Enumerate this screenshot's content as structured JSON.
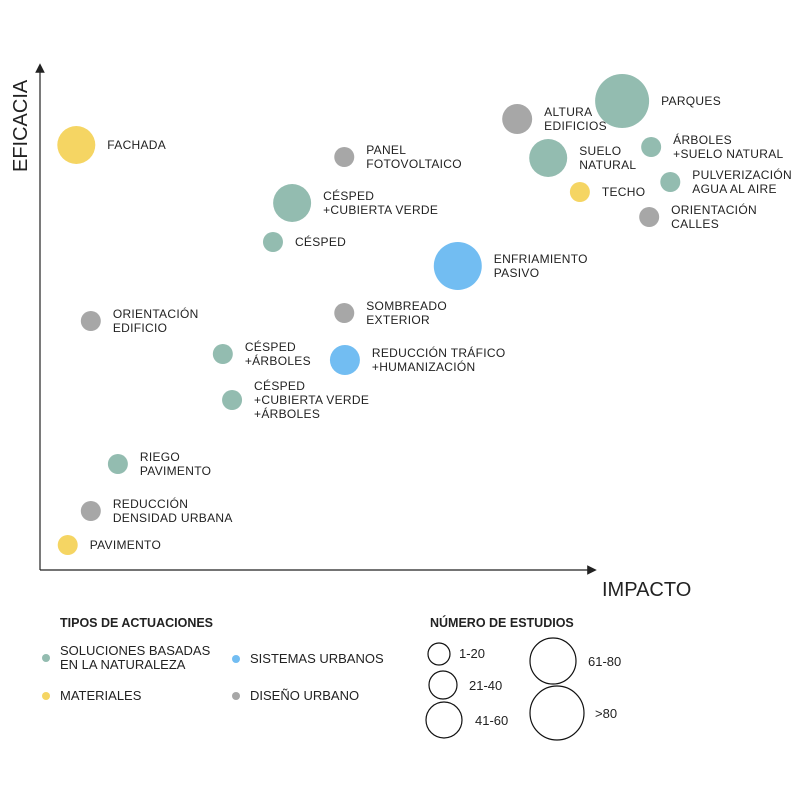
{
  "chart_data": {
    "type": "scatter",
    "title": "",
    "xlabel": "IMPACTO",
    "ylabel": "EFICACIA",
    "xlim": [
      0,
      100
    ],
    "ylim": [
      0,
      100
    ],
    "grid": false,
    "colors": {
      "nature": "#93bcb0",
      "materials": "#f5d563",
      "systems": "#72bdf2",
      "design": "#a7a7a7"
    },
    "categories_legend": {
      "title": "TIPOS DE ACTUACIONES",
      "items": [
        {
          "key": "nature",
          "lines": [
            "SOLUCIONES BASADAS",
            "EN LA NATURALEZA"
          ]
        },
        {
          "key": "systems",
          "lines": [
            "SISTEMAS URBANOS"
          ]
        },
        {
          "key": "materials",
          "lines": [
            "MATERIALES"
          ]
        },
        {
          "key": "design",
          "lines": [
            "DISEÑO URBANO"
          ]
        }
      ]
    },
    "size_legend": {
      "title": "NÚMERO DE ESTUDIOS",
      "items": [
        "1-20",
        "21-40",
        "41-60",
        "61-80",
        ">80"
      ]
    },
    "points": [
      {
        "lines": [
          "FACHADA"
        ],
        "x": 5.5,
        "y": 85,
        "cat": "materials",
        "studies": "41-60"
      },
      {
        "lines": [
          "PANEL",
          "FOTOVOLTAICO"
        ],
        "x": 46.1,
        "y": 82.6,
        "cat": "design",
        "studies": "1-20"
      },
      {
        "lines": [
          "CÉSPED",
          "+CUBIERTA VERDE"
        ],
        "x": 38.2,
        "y": 73.4,
        "cat": "nature",
        "studies": "41-60"
      },
      {
        "lines": [
          "CÉSPED"
        ],
        "x": 35.3,
        "y": 65.6,
        "cat": "nature",
        "studies": "1-20"
      },
      {
        "lines": [
          "ENFRIAMIENTO",
          "PASIVO"
        ],
        "x": 63.3,
        "y": 60.8,
        "cat": "systems",
        "studies": "61-80"
      },
      {
        "lines": [
          "ALTURA",
          "EDIFICIOS"
        ],
        "x": 72.3,
        "y": 90.2,
        "cat": "design",
        "studies": "21-40"
      },
      {
        "lines": [
          "PARQUES"
        ],
        "x": 88.2,
        "y": 93.8,
        "cat": "nature",
        "studies": ">80"
      },
      {
        "lines": [
          "SUELO",
          "NATURAL"
        ],
        "x": 77.0,
        "y": 82.4,
        "cat": "nature",
        "studies": "41-60"
      },
      {
        "lines": [
          "ÁRBOLES",
          "+SUELO NATURAL"
        ],
        "x": 92.6,
        "y": 84.6,
        "cat": "nature",
        "studies": "1-20"
      },
      {
        "lines": [
          "PULVERIZACIÓN",
          "AGUA AL AIRE"
        ],
        "x": 95.5,
        "y": 77.6,
        "cat": "nature",
        "studies": "1-20"
      },
      {
        "lines": [
          "TECHO"
        ],
        "x": 81.8,
        "y": 75.6,
        "cat": "materials",
        "studies": "1-20"
      },
      {
        "lines": [
          "ORIENTACIÓN",
          "CALLES"
        ],
        "x": 92.3,
        "y": 70.6,
        "cat": "design",
        "studies": "1-20"
      },
      {
        "lines": [
          "ORIENTACIÓN",
          "EDIFICIO"
        ],
        "x": 7.7,
        "y": 49.8,
        "cat": "design",
        "studies": "1-20"
      },
      {
        "lines": [
          "SOMBREADO",
          "EXTERIOR"
        ],
        "x": 46.1,
        "y": 51.4,
        "cat": "design",
        "studies": "1-20"
      },
      {
        "lines": [
          "CÉSPED",
          "+ÁRBOLES"
        ],
        "x": 27.7,
        "y": 43.2,
        "cat": "nature",
        "studies": "1-20"
      },
      {
        "lines": [
          "REDUCCIÓN TRÁFICO",
          "+HUMANIZACIÓN"
        ],
        "x": 46.2,
        "y": 42.0,
        "cat": "systems",
        "studies": "21-40"
      },
      {
        "lines": [
          "CÉSPED",
          "+CUBIERTA VERDE",
          "+ÁRBOLES"
        ],
        "x": 29.1,
        "y": 34.0,
        "cat": "nature",
        "studies": "1-20"
      },
      {
        "lines": [
          "RIEGO",
          "PAVIMENTO"
        ],
        "x": 11.8,
        "y": 21.2,
        "cat": "nature",
        "studies": "1-20"
      },
      {
        "lines": [
          "REDUCCIÓN",
          "DENSIDAD URBANA"
        ],
        "x": 7.7,
        "y": 11.8,
        "cat": "design",
        "studies": "1-20"
      },
      {
        "lines": [
          "PAVIMENTO"
        ],
        "x": 4.2,
        "y": 5.0,
        "cat": "materials",
        "studies": "1-20"
      }
    ]
  }
}
